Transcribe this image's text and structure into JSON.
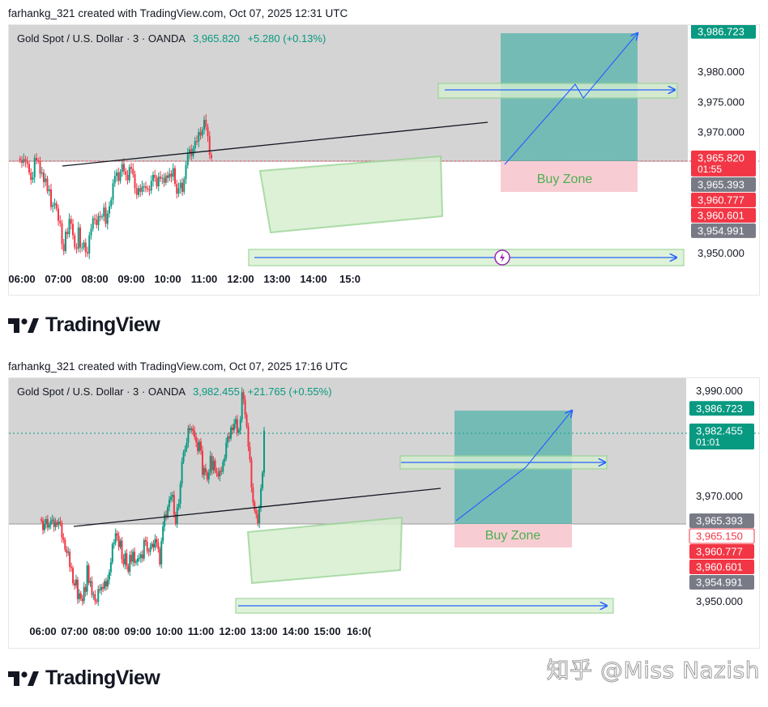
{
  "panels": [
    {
      "credit": "farhankg_321 created with TradingView.com, Oct 07, 2025 12:31 UTC",
      "legend": {
        "symbol": "Gold Spot / U.S. Dollar · 3 · OANDA",
        "price": "3,965.820",
        "change": "+5.280 (+0.13%)"
      },
      "brand": "TradingView"
    },
    {
      "credit": "farhankg_321 created with TradingView.com, Oct 07, 2025 17:16 UTC",
      "legend": {
        "symbol": "Gold Spot / U.S. Dollar · 3 · OANDA",
        "price": "3,982.455",
        "change": "+21.765 (+0.55%)"
      },
      "brand": "TradingView"
    }
  ],
  "watermark": "知乎 @Miss Nazish",
  "colors": {
    "up": "#089981",
    "down": "#f23645",
    "shade": "#cccccc",
    "zone": "#d6efd0",
    "zone_border": "#9ed59a",
    "target": "#26a69a",
    "buy_zone": "#f7cdd3",
    "arrow": "#2962ff",
    "trend": "#131722"
  },
  "chart_data": [
    {
      "type": "candlestick",
      "symbol": "XAUUSD",
      "timeframe": "3",
      "x_ticks": [
        "06:00",
        "07:00",
        "08:00",
        "09:00",
        "10:00",
        "11:00",
        "12:00",
        "13:00",
        "14:00",
        "15:0"
      ],
      "y_ticks": [
        "3,980.000",
        "3,975.000",
        "3,970.000",
        "3,950.000"
      ],
      "ylim": [
        3946.8,
        3989.0
      ],
      "annotation": "Buy Zone",
      "price_labels": [
        {
          "value": 3986.723,
          "text": "3,986.723",
          "color": "#089981"
        },
        {
          "value": 3965.82,
          "text": "3,965.820",
          "sub": "01:55",
          "color": "#f23645"
        },
        {
          "value": 3965.393,
          "text": "3,965.393",
          "color": "#787b86"
        },
        {
          "value": 3960.777,
          "text": "3,960.777",
          "color": "#f23645"
        },
        {
          "value": 3960.601,
          "text": "3,960.601",
          "color": "#f23645"
        },
        {
          "value": 3954.991,
          "text": "3,954.991",
          "color": "#787b86"
        }
      ],
      "candles": {
        "start": "05:57",
        "interval_min": 3,
        "close": [
          3965.4,
          3965.0,
          3965.6,
          3965.2,
          3964.8,
          3963.4,
          3962.2,
          3962.6,
          3965.8,
          3965.4,
          3965.3,
          3963.2,
          3963.4,
          3961.8,
          3962.4,
          3960.3,
          3960.6,
          3957.7,
          3958.0,
          3958.3,
          3957.4,
          3955.4,
          3955.0,
          3951.6,
          3950.4,
          3953.6,
          3953.2,
          3955.7,
          3954.9,
          3953.0,
          3951.0,
          3950.8,
          3954.3,
          3951.0,
          3951.0,
          3951.8,
          3950.2,
          3950.0,
          3953.0,
          3954.1,
          3955.8,
          3955.6,
          3954.7,
          3956.2,
          3956.0,
          3956.1,
          3957.6,
          3954.9,
          3956.6,
          3957.8,
          3958.9,
          3961.6,
          3962.8,
          3963.4,
          3962.0,
          3963.5,
          3964.8,
          3963.6,
          3963.0,
          3962.1,
          3964.3,
          3964.0,
          3963.1,
          3960.8,
          3959.7,
          3960.8,
          3960.2,
          3961.1,
          3961.1,
          3960.8,
          3960.6,
          3960.4,
          3962.0,
          3963.0,
          3962.5,
          3961.1,
          3962.7,
          3962.4,
          3962.5,
          3961.7,
          3962.9,
          3962.5,
          3963.2,
          3962.7,
          3964.1,
          3961.5,
          3959.9,
          3960.8,
          3961.7,
          3960.2,
          3962.3,
          3964.6,
          3966.5,
          3967.2,
          3966.1,
          3967.4,
          3968.6,
          3968.5,
          3970.1,
          3969.5,
          3970.5,
          3972.1,
          3970.9,
          3969.4,
          3966.3,
          3965.8
        ]
      }
    },
    {
      "type": "candlestick",
      "symbol": "XAUUSD",
      "timeframe": "3",
      "x_ticks": [
        "06:00",
        "07:00",
        "08:00",
        "09:00",
        "10:00",
        "11:00",
        "12:00",
        "13:00",
        "14:00",
        "15:00",
        "16:0("
      ],
      "y_ticks": [
        "3,990.000",
        "3,970.000",
        "3,950.000"
      ],
      "ylim": [
        3946.0,
        3993.5
      ],
      "annotation": "Buy Zone",
      "price_labels": [
        {
          "value": 3986.723,
          "text": "3,986.723",
          "color": "#089981"
        },
        {
          "value": 3982.455,
          "text": "3,982.455",
          "sub": "01:01",
          "color": "#089981"
        },
        {
          "value": 3965.393,
          "text": "3,965.393",
          "color": "#787b86"
        },
        {
          "value": 3965.15,
          "text": "3,965.150",
          "color": "#ffffff",
          "text_color": "#f23645"
        },
        {
          "value": 3960.777,
          "text": "3,960.777",
          "color": "#f23645"
        },
        {
          "value": 3960.601,
          "text": "3,960.601",
          "color": "#f23645"
        },
        {
          "value": 3954.991,
          "text": "3,954.991",
          "color": "#787b86"
        }
      ],
      "candles": {
        "start": "05:57",
        "interval_min": 3,
        "close": [
          3965.4,
          3963.6,
          3964.8,
          3965.7,
          3964.1,
          3964.6,
          3965.4,
          3965.6,
          3964.2,
          3965.1,
          3964.6,
          3965.2,
          3964.9,
          3962.2,
          3961.8,
          3959.9,
          3959.3,
          3959.5,
          3956.6,
          3956.4,
          3953.5,
          3953.1,
          3954.2,
          3950.5,
          3951.6,
          3950.6,
          3950.1,
          3952.8,
          3951.9,
          3956.9,
          3953.6,
          3953.9,
          3951.3,
          3951.4,
          3950.1,
          3950.0,
          3952.4,
          3952.2,
          3952.8,
          3952.5,
          3953.9,
          3952.9,
          3954.2,
          3955.6,
          3957.5,
          3960.9,
          3961.2,
          3963.0,
          3962.5,
          3960.4,
          3961.6,
          3958.1,
          3957.1,
          3959.2,
          3956.8,
          3955.7,
          3958.9,
          3957.6,
          3959.5,
          3957.4,
          3957.6,
          3958.2,
          3958.3,
          3959.0,
          3958.2,
          3961.7,
          3961.4,
          3959.6,
          3959.5,
          3960.4,
          3961.0,
          3960.3,
          3961.9,
          3961.2,
          3960.0,
          3957.1,
          3961.5,
          3964.3,
          3966.6,
          3966.1,
          3968.0,
          3969.4,
          3969.9,
          3970.3,
          3966.6,
          3964.8,
          3967.9,
          3968.6,
          3972.4,
          3976.6,
          3978.4,
          3979.0,
          3980.2,
          3983.0,
          3982.6,
          3982.9,
          3982.4,
          3981.3,
          3980.3,
          3978.6,
          3980.4,
          3978.7,
          3974.1,
          3975.4,
          3974.6,
          3973.2,
          3974.5,
          3977.7,
          3975.0,
          3976.8,
          3974.8,
          3974.5,
          3973.8,
          3974.9,
          3974.7,
          3976.6,
          3977.3,
          3980.2,
          3981.4,
          3981.0,
          3983.1,
          3982.6,
          3983.8,
          3984.7,
          3982.1,
          3982.6,
          3984.6,
          3989.8,
          3988.4,
          3985.5,
          3983.3,
          3979.4,
          3977.0,
          3971.7,
          3968.9,
          3967.3,
          3966.6,
          3964.9,
          3967.8,
          3971.5,
          3974.5,
          3982.5
        ]
      }
    }
  ]
}
